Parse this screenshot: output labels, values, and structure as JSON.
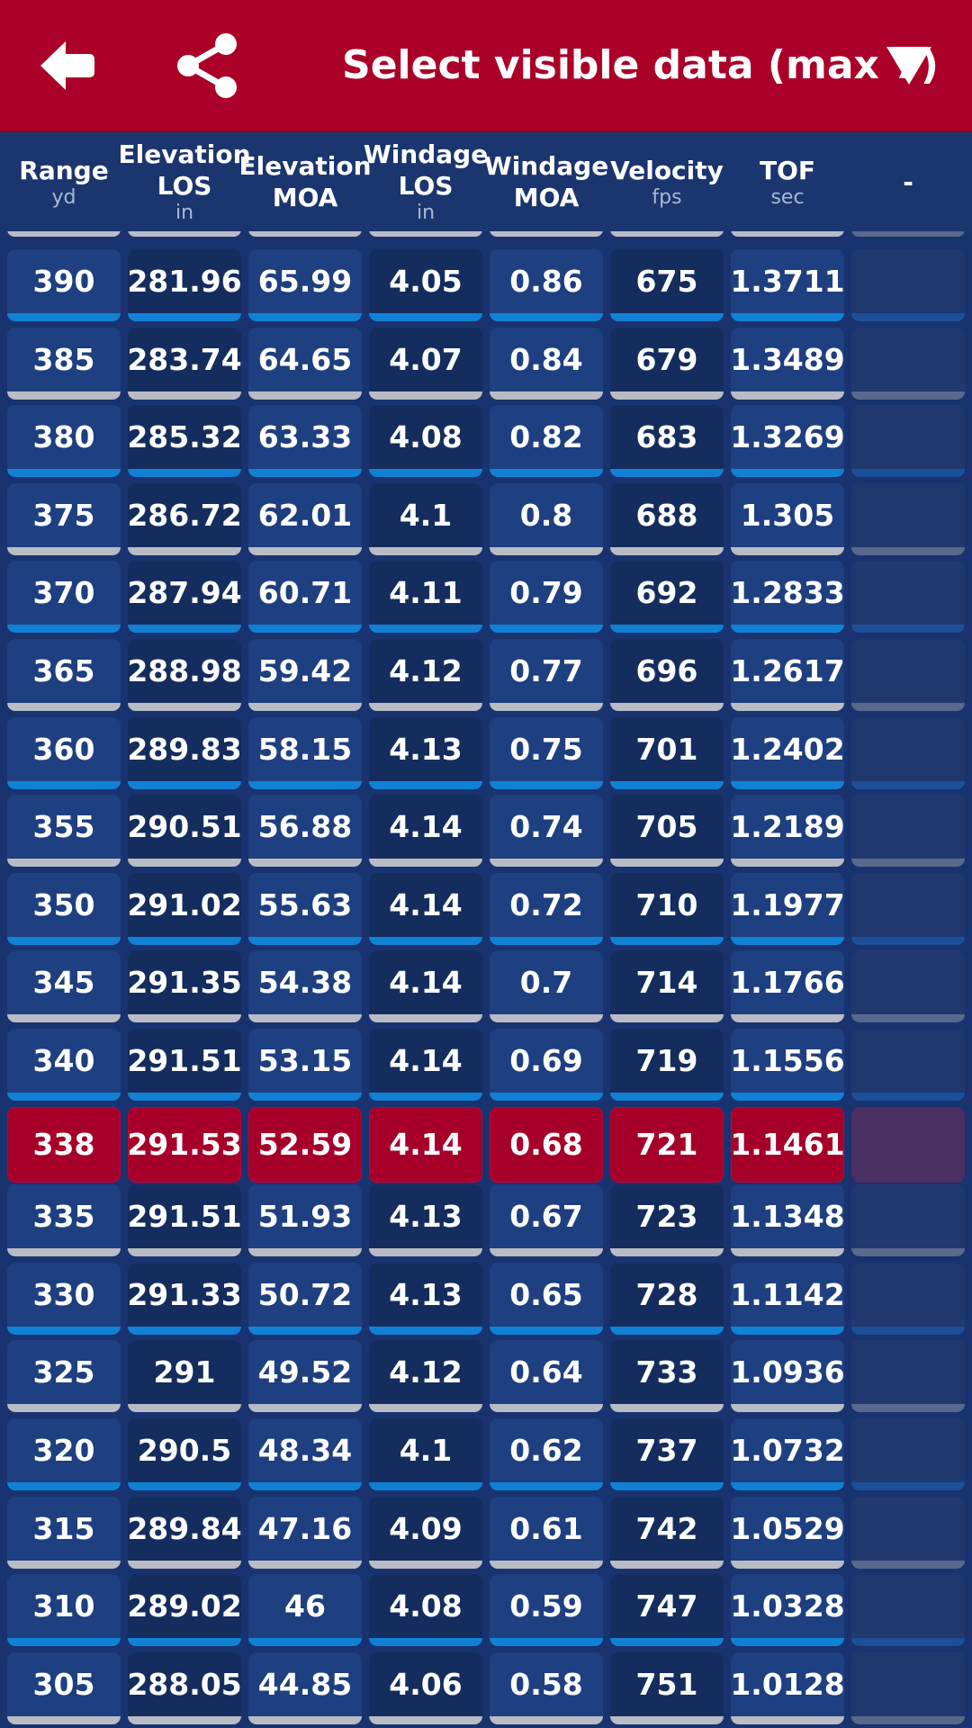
{
  "header": {
    "title": "Select visible data (max 7)",
    "back_icon": "arrow-left-icon",
    "share_icon": "share-icon",
    "dropdown_icon": "triangle-down-icon"
  },
  "columns": [
    {
      "label": "Range",
      "unit": "yd"
    },
    {
      "label": "Elevation\nLOS",
      "unit": "in"
    },
    {
      "label": "Elevation\nMOA",
      "unit": ""
    },
    {
      "label": "Windage\nLOS",
      "unit": "in"
    },
    {
      "label": "Windage\nMOA",
      "unit": ""
    },
    {
      "label": "Velocity",
      "unit": "fps"
    },
    {
      "label": "TOF",
      "unit": "sec"
    },
    {
      "label": "-",
      "unit": ""
    }
  ],
  "highlight_range": "338",
  "rows": [
    [
      "390",
      "281.96",
      "65.99",
      "4.05",
      "0.86",
      "675",
      "1.3711"
    ],
    [
      "385",
      "283.74",
      "64.65",
      "4.07",
      "0.84",
      "679",
      "1.3489"
    ],
    [
      "380",
      "285.32",
      "63.33",
      "4.08",
      "0.82",
      "683",
      "1.3269"
    ],
    [
      "375",
      "286.72",
      "62.01",
      "4.1",
      "0.8",
      "688",
      "1.305"
    ],
    [
      "370",
      "287.94",
      "60.71",
      "4.11",
      "0.79",
      "692",
      "1.2833"
    ],
    [
      "365",
      "288.98",
      "59.42",
      "4.12",
      "0.77",
      "696",
      "1.2617"
    ],
    [
      "360",
      "289.83",
      "58.15",
      "4.13",
      "0.75",
      "701",
      "1.2402"
    ],
    [
      "355",
      "290.51",
      "56.88",
      "4.14",
      "0.74",
      "705",
      "1.2189"
    ],
    [
      "350",
      "291.02",
      "55.63",
      "4.14",
      "0.72",
      "710",
      "1.1977"
    ],
    [
      "345",
      "291.35",
      "54.38",
      "4.14",
      "0.7",
      "714",
      "1.1766"
    ],
    [
      "340",
      "291.51",
      "53.15",
      "4.14",
      "0.69",
      "719",
      "1.1556"
    ],
    [
      "338",
      "291.53",
      "52.59",
      "4.14",
      "0.68",
      "721",
      "1.1461"
    ],
    [
      "335",
      "291.51",
      "51.93",
      "4.13",
      "0.67",
      "723",
      "1.1348"
    ],
    [
      "330",
      "291.33",
      "50.72",
      "4.13",
      "0.65",
      "728",
      "1.1142"
    ],
    [
      "325",
      "291",
      "49.52",
      "4.12",
      "0.64",
      "733",
      "1.0936"
    ],
    [
      "320",
      "290.5",
      "48.34",
      "4.1",
      "0.62",
      "737",
      "1.0732"
    ],
    [
      "315",
      "289.84",
      "47.16",
      "4.09",
      "0.61",
      "742",
      "1.0529"
    ],
    [
      "310",
      "289.02",
      "46",
      "4.08",
      "0.59",
      "747",
      "1.0328"
    ],
    [
      "305",
      "288.05",
      "44.85",
      "4.06",
      "0.58",
      "751",
      "1.0128"
    ]
  ]
}
